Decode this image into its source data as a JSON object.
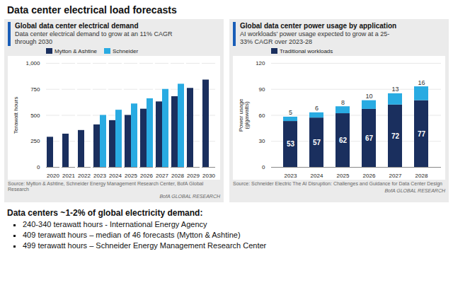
{
  "title": "Data center electrical load forecasts",
  "chart_data": [
    {
      "type": "bar",
      "title": "Global data center electrical demand",
      "subtitle": "Data center electrical demand to grow at an 11% CAGR\nthrough 2030",
      "categories": [
        "2020",
        "2021",
        "2022",
        "2023",
        "2024",
        "2025",
        "2026",
        "2027",
        "2028",
        "2029",
        "2030"
      ],
      "series": [
        {
          "name": "Mytton & Ashtine",
          "color": "#1a2f5e",
          "values": [
            290,
            320,
            355,
            409,
            450,
            500,
            560,
            630,
            680,
            760,
            840
          ]
        },
        {
          "name": "Schneider",
          "color": "#29abe2",
          "values": [
            null,
            null,
            null,
            500,
            550,
            610,
            660,
            750,
            800,
            null,
            null
          ]
        }
      ],
      "ylabel": "Terawatt hours",
      "ylim": [
        0,
        1000
      ],
      "yticks": [
        0,
        250,
        500,
        750,
        {
          "value": 1000,
          "label": "1,000"
        }
      ],
      "grid": true,
      "legend": "upper left",
      "annotations": [
        "Source: Mytton & Ashtine, Schneider Energy Management Research Center, BofA Global Research",
        "BofA GLOBAL RESEARCH"
      ]
    },
    {
      "type": "bar",
      "title": "Global data center power usage by application",
      "subtitle": "AI workloads’ power usage expected to grow at a 25-\n33% CAGR over 2023-28",
      "categories": [
        "2023",
        "2024",
        "2025",
        "2026",
        "2027",
        "2028"
      ],
      "series": [
        {
          "name": "Traditional workloads",
          "color": "#1a2f5e",
          "values": [
            53,
            57,
            62,
            67,
            72,
            77
          ]
        },
        {
          "color": "#29abe2",
          "values": [
            5,
            6,
            8,
            10,
            13,
            16
          ]
        }
      ],
      "stacked": true,
      "data_labels": true,
      "ylabel": "Power usage\n(gigawatts)",
      "ylim": [
        0,
        120
      ],
      "yticks": [
        0,
        30,
        60,
        90,
        120
      ],
      "grid": true,
      "legend": "upper left",
      "annotations": [
        "Source: Schneider Electric The AI Disruption: Challenges and Guidance for Data Center Design",
        "BofA GLOBAL RESEARCH"
      ]
    }
  ],
  "annotations": [
    "Data centers ~1-2% of global electricity demand:",
    "240-340 terawatt hours - International Energy Agency",
    "409 terawatt hours – median of 46 forecasts (Mytton & Ashtine)",
    "499 terawatt hours – Schneider Energy Management Research Center"
  ]
}
